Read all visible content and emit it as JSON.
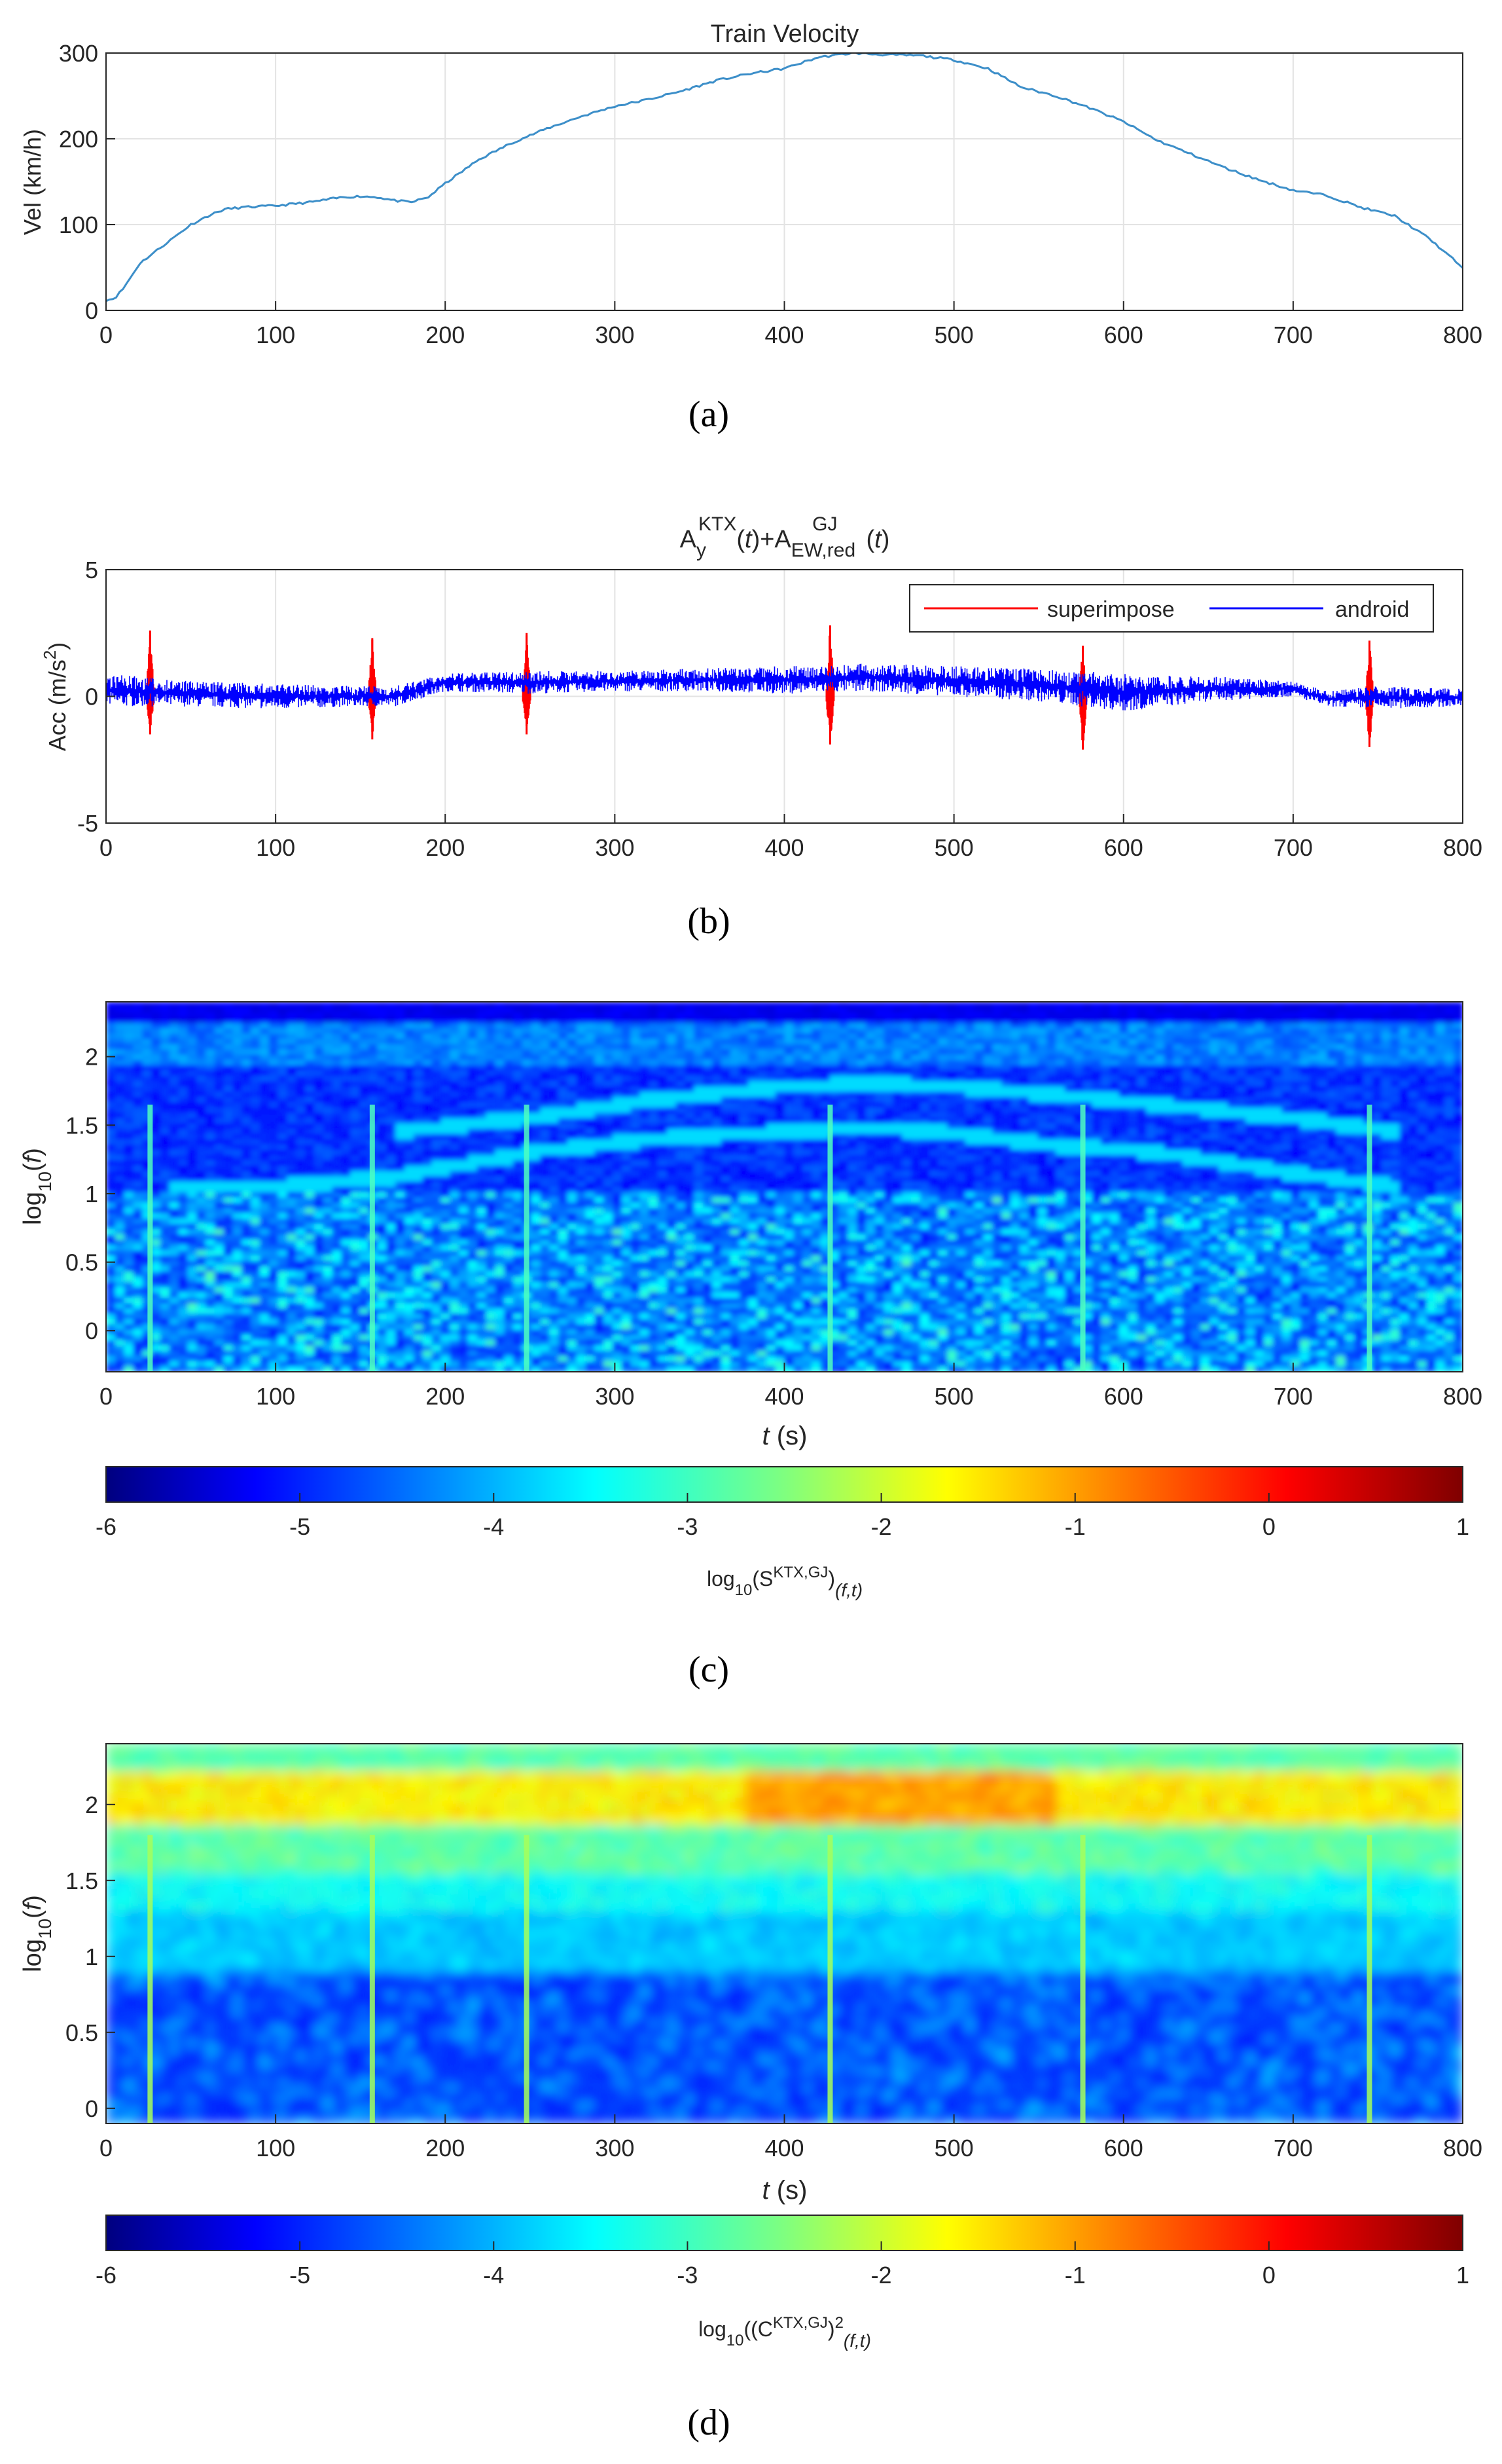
{
  "panel_captions": [
    "(a)",
    "(b)",
    "(c)",
    "(d)"
  ],
  "chart_data": [
    {
      "type": "line",
      "title": "Train Velocity",
      "xlabel": "",
      "ylabel": "Vel (km/h)",
      "xlim": [
        0,
        800
      ],
      "ylim": [
        0,
        300
      ],
      "xticks": [
        "0",
        "100",
        "200",
        "300",
        "400",
        "500",
        "600",
        "700",
        "800"
      ],
      "yticks": [
        "0",
        "100",
        "200",
        "300"
      ],
      "grid": true,
      "series": [
        {
          "color": "#3d8fc9",
          "x": [
            0,
            5,
            10,
            15,
            20,
            30,
            40,
            50,
            60,
            70,
            80,
            100,
            120,
            140,
            150,
            160,
            170,
            180,
            190,
            200,
            220,
            240,
            260,
            280,
            300,
            320,
            340,
            360,
            380,
            400,
            420,
            440,
            460,
            480,
            500,
            520,
            540,
            560,
            580,
            600,
            620,
            640,
            660,
            680,
            700,
            720,
            740,
            760,
            780,
            800
          ],
          "y": [
            12,
            14,
            25,
            40,
            55,
            70,
            85,
            100,
            110,
            118,
            120,
            122,
            126,
            132,
            133,
            132,
            128,
            126,
            132,
            148,
            176,
            196,
            212,
            226,
            238,
            246,
            256,
            268,
            276,
            282,
            295,
            300,
            298,
            297,
            292,
            282,
            260,
            250,
            236,
            220,
            198,
            182,
            166,
            152,
            140,
            134,
            120,
            110,
            84,
            50
          ]
        }
      ]
    },
    {
      "type": "line",
      "title": "A_y^KTX(t)+A_EW,red^GJ(t)",
      "xlabel": "",
      "ylabel": "Acc (m/s²)",
      "xlim": [
        0,
        800
      ],
      "ylim": [
        -5,
        5
      ],
      "xticks": [
        "0",
        "100",
        "200",
        "300",
        "400",
        "500",
        "600",
        "700",
        "800"
      ],
      "yticks": [
        "-5",
        "0",
        "5"
      ],
      "grid": true,
      "legend_position": "top-right",
      "series": [
        {
          "name": "superimpose",
          "color": "#ff0000",
          "spike_x": [
            26,
            157,
            248,
            427,
            576,
            745
          ],
          "spike_max": [
            2.6,
            2.3,
            2.5,
            2.8,
            2.0,
            2.2
          ],
          "spike_min": [
            -1.5,
            -1.7,
            -1.5,
            -1.9,
            -2.1,
            -2.0
          ]
        },
        {
          "name": "android",
          "color": "#0000ff",
          "envelope_x": [
            0,
            50,
            100,
            150,
            170,
            200,
            250,
            300,
            350,
            400,
            450,
            500,
            550,
            600,
            650,
            700,
            720,
            750,
            800
          ],
          "envelope_upper": [
            0.9,
            0.6,
            0.5,
            0.4,
            0.4,
            0.9,
            1.0,
            1.0,
            1.1,
            1.2,
            1.3,
            1.2,
            1.1,
            0.9,
            0.8,
            0.6,
            0.2,
            0.4,
            0.3
          ],
          "envelope_lower": [
            -0.4,
            -0.4,
            -0.5,
            -0.4,
            -0.4,
            0.2,
            0.1,
            0.2,
            0.2,
            0.1,
            0.2,
            0.0,
            -0.2,
            -0.6,
            -0.2,
            0.0,
            -0.4,
            -0.5,
            -0.4
          ]
        }
      ]
    },
    {
      "type": "heatmap",
      "title": "",
      "xlabel": "t (s)",
      "ylabel": "log10(f)",
      "xlim": [
        0,
        800
      ],
      "ylim": [
        -0.3,
        2.4
      ],
      "xticks": [
        "0",
        "100",
        "200",
        "300",
        "400",
        "500",
        "600",
        "700",
        "800"
      ],
      "yticks": [
        "0",
        "0.5",
        "1",
        "1.5",
        "2"
      ],
      "colormap": "jet",
      "colorbar": {
        "label": "log10(S^KTX,GJ)(f,t)",
        "range": [
          -6,
          1
        ],
        "ticks": [
          "-6",
          "-5",
          "-4",
          "-3",
          "-2",
          "-1",
          "0",
          "1"
        ]
      },
      "vertical_streak_t": [
        26,
        157,
        248,
        427,
        576,
        745
      ],
      "curve_tracks": [
        {
          "t": [
            40,
            100,
            170,
            250,
            320,
            400,
            450,
            500,
            560,
            620,
            700,
            760
          ],
          "logf": [
            1.05,
            1.05,
            1.12,
            1.3,
            1.4,
            1.45,
            1.48,
            1.44,
            1.35,
            1.3,
            1.15,
            1.05
          ]
        },
        {
          "t": [
            170,
            250,
            320,
            400,
            450,
            500,
            560,
            620,
            700,
            760
          ],
          "logf": [
            1.45,
            1.55,
            1.68,
            1.78,
            1.8,
            1.78,
            1.72,
            1.65,
            1.55,
            1.45
          ]
        }
      ]
    },
    {
      "type": "heatmap",
      "title": "",
      "xlabel": "t (s)",
      "ylabel": "log10(f)",
      "xlim": [
        0,
        800
      ],
      "ylim": [
        -0.1,
        2.4
      ],
      "xticks": [
        "0",
        "100",
        "200",
        "300",
        "400",
        "500",
        "600",
        "700",
        "800"
      ],
      "yticks": [
        "0",
        "0.5",
        "1",
        "1.5",
        "2"
      ],
      "colormap": "jet",
      "colorbar": {
        "label": "log10((C^KTX,GJ)^2(f,t)",
        "range": [
          -6,
          1
        ],
        "ticks": [
          "-6",
          "-5",
          "-4",
          "-3",
          "-2",
          "-1",
          "0",
          "1"
        ]
      },
      "vertical_streak_t": [
        26,
        157,
        248,
        427,
        576,
        745
      ],
      "band_logf": 2.05
    }
  ]
}
